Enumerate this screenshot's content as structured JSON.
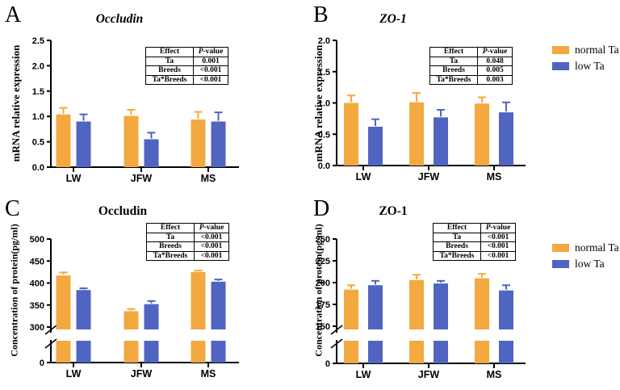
{
  "figure": {
    "background": "#ffffff",
    "colors": {
      "normal": "#F3A840",
      "low": "#5064C2",
      "axis": "#000000",
      "text": "#000000"
    }
  },
  "legend": {
    "position": "right",
    "items": [
      {
        "key": "normal",
        "label": "normal Ta",
        "color": "#F3A840"
      },
      {
        "key": "low",
        "label": "low Ta",
        "color": "#5064C2"
      }
    ]
  },
  "chart_data": [
    {
      "id": "A",
      "panel_label": "A",
      "type": "bar",
      "title": "Occludin",
      "title_italic": true,
      "ylabel": "mRNA relative expression",
      "categories": [
        "LW",
        "JFW",
        "MS"
      ],
      "series": [
        {
          "name": "normal Ta",
          "values": [
            1.04,
            1.01,
            0.94
          ],
          "errors": [
            0.13,
            0.12,
            0.15
          ]
        },
        {
          "name": "low Ta",
          "values": [
            0.9,
            0.55,
            0.9
          ],
          "errors": [
            0.14,
            0.13,
            0.18
          ]
        }
      ],
      "ylim": [
        0,
        2.5
      ],
      "yticks": [
        0,
        0.5,
        1.0,
        1.5,
        2.0,
        2.5
      ],
      "ytick_labels": [
        "0.0",
        "0.5",
        "1.0",
        "1.5",
        "2.0",
        "2.5"
      ],
      "axis_break": false,
      "grid": false,
      "stats_table": {
        "headers": [
          "Effect",
          "P-value"
        ],
        "rows": [
          [
            "Ta",
            "0.001"
          ],
          [
            "Breeds",
            "<0.001"
          ],
          [
            "Ta*Breeds",
            "<0.001"
          ]
        ]
      }
    },
    {
      "id": "B",
      "panel_label": "B",
      "type": "bar",
      "title": "ZO-1",
      "title_italic": true,
      "ylabel": "mRNA relative expression",
      "categories": [
        "LW",
        "JFW",
        "MS"
      ],
      "series": [
        {
          "name": "normal Ta",
          "values": [
            1.0,
            1.01,
            0.99
          ],
          "errors": [
            0.12,
            0.15,
            0.1
          ]
        },
        {
          "name": "low Ta",
          "values": [
            0.62,
            0.77,
            0.85
          ],
          "errors": [
            0.12,
            0.12,
            0.16
          ]
        }
      ],
      "ylim": [
        0,
        2.0
      ],
      "yticks": [
        0,
        0.5,
        1.0,
        1.5,
        2.0
      ],
      "ytick_labels": [
        "0.0",
        "0.5",
        "1.0",
        "1.5",
        "2.0"
      ],
      "axis_break": false,
      "grid": false,
      "stats_table": {
        "headers": [
          "Effect",
          "P-value"
        ],
        "rows": [
          [
            "Ta",
            "0.048"
          ],
          [
            "Breeds",
            "0.005"
          ],
          [
            "Ta*Breeds",
            "0.003"
          ]
        ]
      }
    },
    {
      "id": "C",
      "panel_label": "C",
      "type": "bar",
      "title": "Occludin",
      "title_italic": false,
      "ylabel": "Concentration of protein(pg/ml)",
      "categories": [
        "LW",
        "JFW",
        "MS"
      ],
      "series": [
        {
          "name": "normal Ta",
          "values": [
            417,
            336,
            425
          ],
          "errors": [
            7,
            5,
            3
          ]
        },
        {
          "name": "low Ta",
          "values": [
            384,
            352,
            403
          ],
          "errors": [
            4,
            7,
            5
          ]
        }
      ],
      "ylim": [
        300,
        500
      ],
      "yticks": [
        300,
        350,
        400,
        450,
        500
      ],
      "ytick_labels": [
        "300",
        "350",
        "400",
        "450",
        "500"
      ],
      "axis_break": true,
      "baseline_label": "0",
      "grid": false,
      "stats_table": {
        "headers": [
          "Effect",
          "P-value"
        ],
        "rows": [
          [
            "Ta",
            "<0.001"
          ],
          [
            "Breeds",
            "<0.001"
          ],
          [
            "Ta*Breeds",
            "<0.001"
          ]
        ]
      }
    },
    {
      "id": "D",
      "panel_label": "D",
      "type": "bar",
      "title": "ZO-1",
      "title_italic": false,
      "ylabel": "Concentration of protein(pg/ml)",
      "categories": [
        "LW",
        "JFW",
        "MS"
      ],
      "series": [
        {
          "name": "normal Ta",
          "values": [
            192,
            203,
            205
          ],
          "errors": [
            5,
            6,
            5
          ]
        },
        {
          "name": "low Ta",
          "values": [
            197,
            199,
            191
          ],
          "errors": [
            5,
            3,
            6
          ]
        }
      ],
      "ylim": [
        150,
        250
      ],
      "yticks": [
        150,
        175,
        200,
        225,
        250
      ],
      "ytick_labels": [
        "150",
        "175",
        "200",
        "225",
        "250"
      ],
      "axis_break": true,
      "baseline_label": "0",
      "grid": false,
      "stats_table": {
        "headers": [
          "Effect",
          "P-value"
        ],
        "rows": [
          [
            "Ta",
            "<0.001"
          ],
          [
            "Breeds",
            "<0.001"
          ],
          [
            "Ta*Breeds",
            "<0.001"
          ]
        ]
      }
    }
  ]
}
